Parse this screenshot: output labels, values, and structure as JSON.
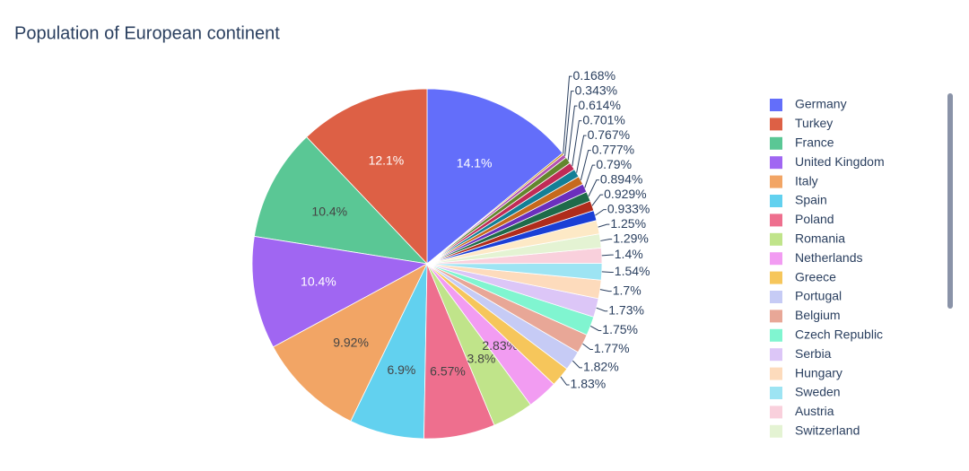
{
  "chart_data": {
    "type": "pie",
    "title": "Population of European continent",
    "categories": [
      "Germany",
      "Turkey",
      "France",
      "United Kingdom",
      "Italy",
      "Spain",
      "Poland",
      "Romania",
      "Netherlands",
      "Greece",
      "Portugal",
      "Belgium",
      "Czech Republic",
      "Serbia",
      "Hungary",
      "Sweden",
      "Austria",
      "Switzerland",
      null,
      null,
      null,
      null,
      null,
      null,
      null,
      null,
      null,
      null,
      null
    ],
    "values": [
      14.1,
      12.1,
      10.4,
      10.4,
      9.92,
      6.9,
      6.57,
      3.8,
      2.83,
      1.83,
      1.82,
      1.77,
      1.75,
      1.73,
      1.7,
      1.54,
      1.4,
      1.29,
      1.25,
      0.933,
      0.929,
      0.894,
      0.79,
      0.777,
      0.767,
      0.701,
      0.614,
      0.343,
      0.168
    ],
    "value_labels": [
      "14.1%",
      "12.1%",
      "10.4%",
      "10.4%",
      "9.92%",
      "6.9%",
      "6.57%",
      "3.8%",
      "2.83%",
      "1.83%",
      "1.82%",
      "1.77%",
      "1.75%",
      "1.73%",
      "1.7%",
      "1.54%",
      "1.4%",
      "1.29%",
      "1.25%",
      "0.933%",
      "0.929%",
      "0.894%",
      "0.79%",
      "0.777%",
      "0.767%",
      "0.701%",
      "0.614%",
      "0.343%",
      "0.168%"
    ],
    "colors": [
      "#636efa",
      "#dd6045",
      "#5ac795",
      "#a066f2",
      "#f2a565",
      "#62d1ef",
      "#ee6f8e",
      "#c0e48a",
      "#f29cf2",
      "#f6c65b",
      "#c6cbf5",
      "#e8a797",
      "#80f5d0",
      "#dcc6f7",
      "#fddbbc",
      "#9de4f3",
      "#f9d0dc",
      "#e4f3d3",
      "#fde9c6",
      "#1a3fd6",
      "#b02c1c",
      "#1e6b4a",
      "#6b2fbd",
      "#c66a1d",
      "#137f96",
      "#c02b57",
      "#63862e",
      "#b451b0",
      "#c7961c"
    ],
    "legend": "right"
  }
}
